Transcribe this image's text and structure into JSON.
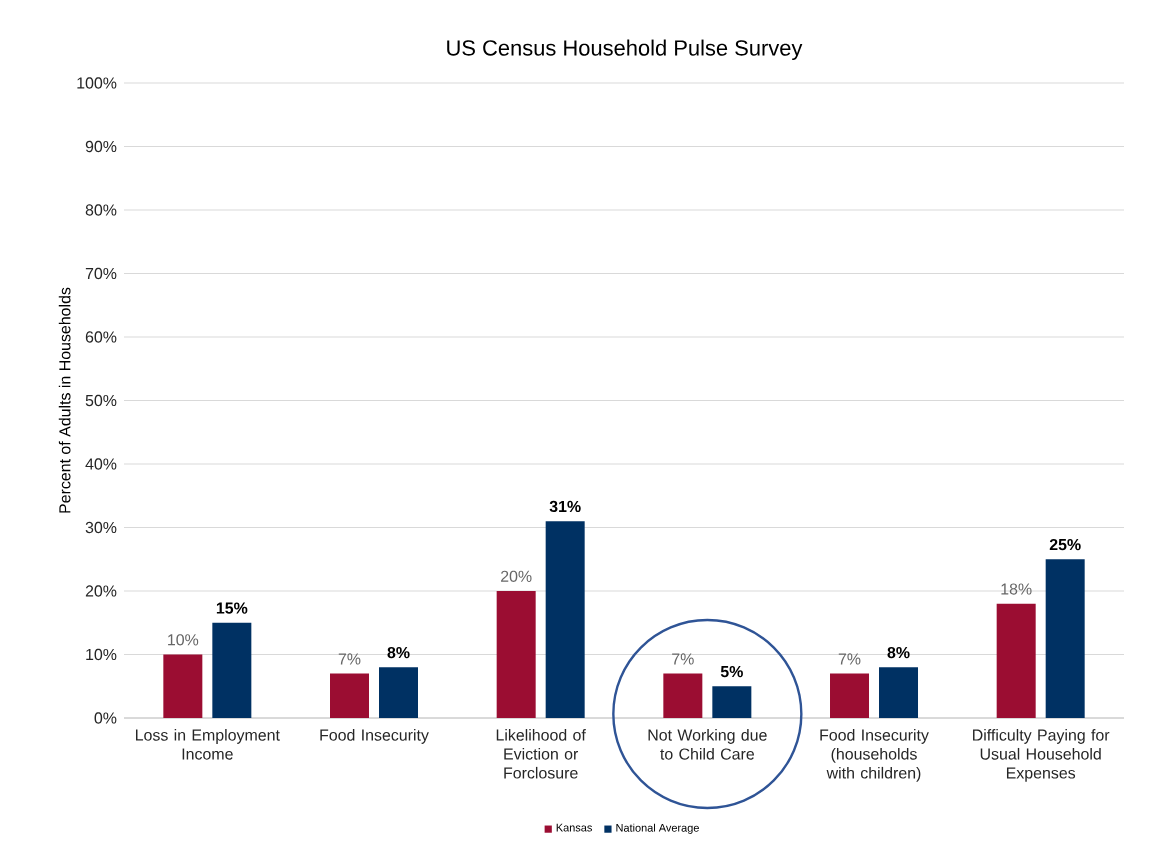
{
  "chart_data": {
    "type": "bar",
    "title": "US Census Household Pulse Survey",
    "ylabel": "Percent of Adults in Households",
    "categories": [
      "Loss in Employment Income",
      "Food Insecurity",
      "Likelihood of Eviction or Forclosure",
      "Not Working due to Child Care",
      "Food Insecurity (households with children)",
      "Difficulty Paying for Usual Household Expenses"
    ],
    "series": [
      {
        "name": "Kansas",
        "color": "#9b0d32",
        "values": [
          10,
          7,
          20,
          7,
          7,
          18
        ],
        "value_labels": [
          "10%",
          "7%",
          "20%",
          "7%",
          "7%",
          "18%"
        ]
      },
      {
        "name": "National Average",
        "color": "#003163",
        "values": [
          15,
          8,
          31,
          5,
          8,
          25
        ],
        "value_labels": [
          "15%",
          "8%",
          "31%",
          "5%",
          "8%",
          "25%"
        ]
      }
    ],
    "ylim": [
      0,
      100
    ],
    "yticks": [
      {
        "value": 0,
        "label": "0%"
      },
      {
        "value": 10,
        "label": "10%"
      },
      {
        "value": 20,
        "label": "20%"
      },
      {
        "value": 30,
        "label": "30%"
      },
      {
        "value": 40,
        "label": "40%"
      },
      {
        "value": 50,
        "label": "50%"
      },
      {
        "value": 60,
        "label": "60%"
      },
      {
        "value": 70,
        "label": "70%"
      },
      {
        "value": 80,
        "label": "80%"
      },
      {
        "value": 90,
        "label": "90%"
      },
      {
        "value": 100,
        "label": "100%"
      }
    ],
    "grid": "y",
    "legend": "bottom"
  }
}
